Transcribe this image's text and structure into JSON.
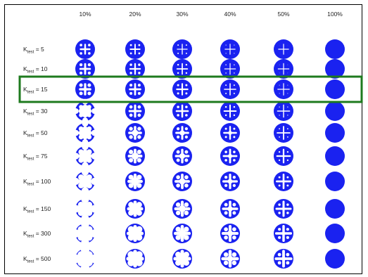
{
  "figure": {
    "column_labels": [
      "10%",
      "20%",
      "30%",
      "40%",
      "50%",
      "100%"
    ],
    "row_labels": [
      {
        "prefix": "K",
        "sub": "test",
        "value": " = 5"
      },
      {
        "prefix": "K",
        "sub": "test",
        "value": " = 10"
      },
      {
        "prefix": "K",
        "sub": "test",
        "value": " = 15"
      },
      {
        "prefix": "K",
        "sub": "test",
        "value": " = 30"
      },
      {
        "prefix": "K",
        "sub": "test",
        "value": " = 50"
      },
      {
        "prefix": "K",
        "sub": "test",
        "value": " = 75"
      },
      {
        "prefix": "K",
        "sub": "test",
        "value": " = 100"
      },
      {
        "prefix": "K",
        "sub": "test",
        "value": " = 150"
      },
      {
        "prefix": "K",
        "sub": "test",
        "value": " = 300"
      },
      {
        "prefix": "K",
        "sub": "test",
        "value": " = 500"
      }
    ],
    "highlight_row_index": 2,
    "colors": {
      "shape": "#1a22f0",
      "highlight": "#1e7a1e",
      "text": "#222222",
      "border": "#000000"
    }
  }
}
